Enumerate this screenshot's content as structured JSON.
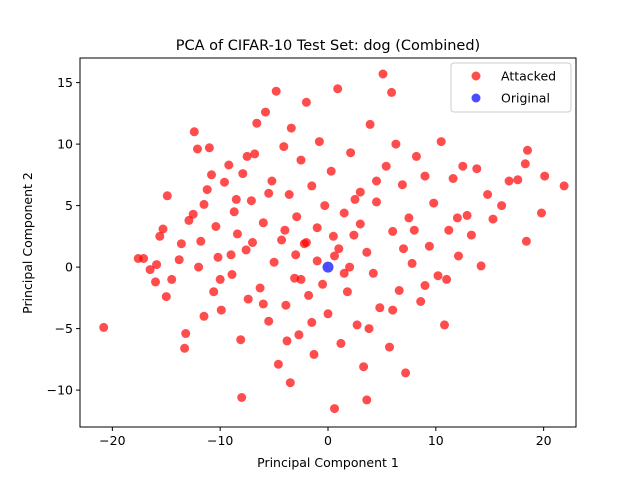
{
  "chart_data": {
    "type": "scatter",
    "title": "PCA of CIFAR-10 Test Set: dog (Combined)",
    "xlabel": "Principal Component 1",
    "ylabel": "Principal Component 2",
    "xlim": [
      -23,
      23
    ],
    "ylim": [
      -13,
      17
    ],
    "xticks": [
      -20,
      -10,
      0,
      10,
      20
    ],
    "yticks": [
      -10,
      -5,
      0,
      5,
      10,
      15
    ],
    "grid": false,
    "legend_position": "top-right",
    "series": [
      {
        "name": "Attacked",
        "color": "#ff0000",
        "points": [
          [
            -20.8,
            -4.9
          ],
          [
            -17.6,
            0.7
          ],
          [
            -17.1,
            0.7
          ],
          [
            -16.5,
            -0.2
          ],
          [
            -16.0,
            -1.2
          ],
          [
            -15.9,
            0.2
          ],
          [
            -15.6,
            2.5
          ],
          [
            -15.3,
            3.1
          ],
          [
            -15.0,
            -2.4
          ],
          [
            -14.9,
            5.8
          ],
          [
            -14.5,
            -1.0
          ],
          [
            -13.8,
            0.6
          ],
          [
            -13.6,
            1.9
          ],
          [
            -13.3,
            -6.6
          ],
          [
            -13.2,
            -5.4
          ],
          [
            -12.9,
            3.8
          ],
          [
            -12.5,
            4.3
          ],
          [
            -12.4,
            11.0
          ],
          [
            -12.1,
            9.6
          ],
          [
            -11.8,
            2.1
          ],
          [
            -11.5,
            5.1
          ],
          [
            -11.2,
            6.3
          ],
          [
            -11.0,
            9.7
          ],
          [
            -10.8,
            7.5
          ],
          [
            -10.6,
            -2.0
          ],
          [
            -10.4,
            3.3
          ],
          [
            -10.2,
            0.8
          ],
          [
            -9.9,
            -3.5
          ],
          [
            -9.6,
            6.9
          ],
          [
            -9.2,
            8.3
          ],
          [
            -8.9,
            -0.6
          ],
          [
            -8.7,
            4.5
          ],
          [
            -8.4,
            2.7
          ],
          [
            -8.1,
            -5.9
          ],
          [
            -7.9,
            7.6
          ],
          [
            -7.6,
            1.4
          ],
          [
            -7.4,
            -2.6
          ],
          [
            -7.1,
            5.4
          ],
          [
            -6.8,
            9.2
          ],
          [
            -6.6,
            11.7
          ],
          [
            -6.3,
            -1.7
          ],
          [
            -6.0,
            3.6
          ],
          [
            -5.8,
            12.6
          ],
          [
            -5.5,
            -4.4
          ],
          [
            -5.2,
            7.0
          ],
          [
            -5.0,
            0.4
          ],
          [
            -4.8,
            14.3
          ],
          [
            -4.6,
            -7.9
          ],
          [
            -4.3,
            2.2
          ],
          [
            -4.1,
            9.8
          ],
          [
            -3.9,
            -3.1
          ],
          [
            -3.6,
            5.9
          ],
          [
            -3.4,
            11.3
          ],
          [
            -3.1,
            -0.9
          ],
          [
            -2.9,
            4.1
          ],
          [
            -2.7,
            -5.5
          ],
          [
            -2.5,
            8.7
          ],
          [
            -2.2,
            1.9
          ],
          [
            -2.0,
            13.4
          ],
          [
            -1.8,
            -2.3
          ],
          [
            -1.5,
            6.6
          ],
          [
            -1.3,
            -7.1
          ],
          [
            -1.0,
            3.2
          ],
          [
            -0.8,
            10.2
          ],
          [
            -0.5,
            -1.4
          ],
          [
            -0.3,
            5.0
          ],
          [
            0.0,
            -3.8
          ],
          [
            0.3,
            7.8
          ],
          [
            0.6,
            0.9
          ],
          [
            0.9,
            14.5
          ],
          [
            1.2,
            -6.2
          ],
          [
            1.5,
            4.4
          ],
          [
            1.8,
            -2.0
          ],
          [
            2.1,
            9.3
          ],
          [
            2.4,
            2.6
          ],
          [
            2.7,
            -4.7
          ],
          [
            3.0,
            6.1
          ],
          [
            3.3,
            -8.1
          ],
          [
            3.6,
            1.2
          ],
          [
            3.9,
            11.6
          ],
          [
            4.2,
            -0.5
          ],
          [
            4.5,
            5.3
          ],
          [
            4.8,
            -3.3
          ],
          [
            5.1,
            15.7
          ],
          [
            5.4,
            8.2
          ],
          [
            5.7,
            -6.5
          ],
          [
            6.0,
            2.9
          ],
          [
            6.3,
            10.0
          ],
          [
            6.6,
            -1.9
          ],
          [
            6.9,
            6.7
          ],
          [
            7.2,
            -8.6
          ],
          [
            7.5,
            4.0
          ],
          [
            7.8,
            0.3
          ],
          [
            8.2,
            9.0
          ],
          [
            8.6,
            -2.8
          ],
          [
            9.0,
            7.4
          ],
          [
            9.4,
            1.7
          ],
          [
            9.8,
            5.2
          ],
          [
            10.2,
            -0.7
          ],
          [
            10.5,
            10.2
          ],
          [
            10.8,
            -4.7
          ],
          [
            11.2,
            3.0
          ],
          [
            11.6,
            7.2
          ],
          [
            12.1,
            0.9
          ],
          [
            12.5,
            8.2
          ],
          [
            12.9,
            4.2
          ],
          [
            13.3,
            2.6
          ],
          [
            13.8,
            8.0
          ],
          [
            14.2,
            0.1
          ],
          [
            14.8,
            5.9
          ],
          [
            15.3,
            3.9
          ],
          [
            16.1,
            5.0
          ],
          [
            16.8,
            7.0
          ],
          [
            17.6,
            7.1
          ],
          [
            18.3,
            8.4
          ],
          [
            18.5,
            9.5
          ],
          [
            18.4,
            2.1
          ],
          [
            19.8,
            4.4
          ],
          [
            20.1,
            7.4
          ],
          [
            21.9,
            6.6
          ],
          [
            -8.0,
            -10.6
          ],
          [
            -3.5,
            -9.4
          ],
          [
            0.6,
            -11.5
          ],
          [
            3.6,
            -10.8
          ],
          [
            5.9,
            14.2
          ],
          [
            -3.0,
            1.0
          ],
          [
            -2.0,
            2.0
          ],
          [
            -1.0,
            0.5
          ],
          [
            1.0,
            1.5
          ],
          [
            2.0,
            0.0
          ],
          [
            -4.0,
            3.0
          ],
          [
            3.0,
            3.5
          ],
          [
            -2.5,
            -1.0
          ],
          [
            1.5,
            -0.5
          ],
          [
            0.5,
            2.5
          ],
          [
            -6.0,
            -3.0
          ],
          [
            6.0,
            -3.5
          ],
          [
            -7.0,
            2.0
          ],
          [
            7.0,
            1.5
          ],
          [
            -1.5,
            -4.5
          ],
          [
            2.5,
            5.5
          ],
          [
            -5.5,
            6.0
          ],
          [
            4.5,
            7.0
          ],
          [
            -3.8,
            -6.0
          ],
          [
            3.8,
            -5.0
          ],
          [
            -9.0,
            1.0
          ],
          [
            9.0,
            -1.5
          ],
          [
            -10.0,
            -1.0
          ],
          [
            8.0,
            3.0
          ],
          [
            -8.5,
            5.5
          ],
          [
            -11.5,
            -4.0
          ],
          [
            11.0,
            -1.0
          ],
          [
            -12.0,
            0.0
          ],
          [
            12.0,
            4.0
          ],
          [
            -7.5,
            9.0
          ]
        ]
      },
      {
        "name": "Original",
        "color": "#0000ff",
        "points": [
          [
            0.0,
            0.0
          ]
        ]
      }
    ]
  }
}
